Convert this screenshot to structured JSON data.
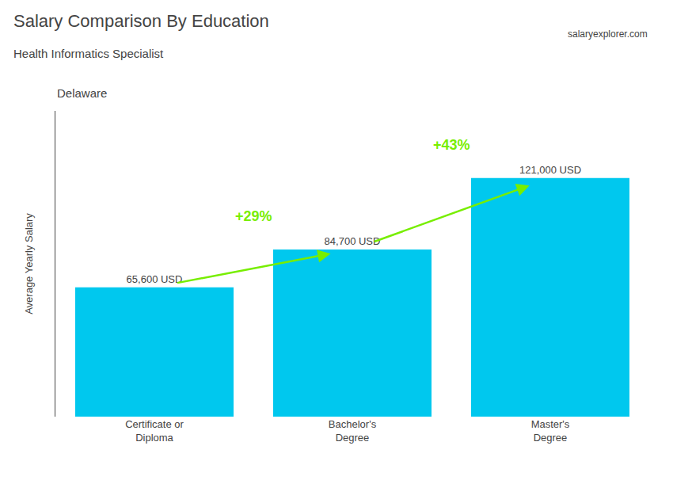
{
  "chart_data": {
    "type": "bar",
    "title": "Salary Comparison By Education",
    "subtitle": "Health Informatics Specialist",
    "location": "Delaware",
    "source": "salaryexplorer.com",
    "ylabel": "Average Yearly Salary",
    "categories": [
      "Certificate or\nDiploma",
      "Bachelor's\nDegree",
      "Master's\nDegree"
    ],
    "values": [
      65600,
      84700,
      121000
    ],
    "value_labels": [
      "65,600 USD",
      "84,700 USD",
      "121,000 USD"
    ],
    "data_labels": true,
    "color": "#00C8EE",
    "changes": [
      {
        "text": "+29%",
        "from": "Certificate or\nDiploma",
        "to": "Bachelor's\nDegree",
        "color": "#77EE00"
      },
      {
        "text": "+43%",
        "from": "Bachelor's\nDegree",
        "to": "Master's\nDegree",
        "color": "#77EE00"
      }
    ],
    "ylim": [
      0,
      155000
    ],
    "tick_labels": "x",
    "grid": false
  }
}
